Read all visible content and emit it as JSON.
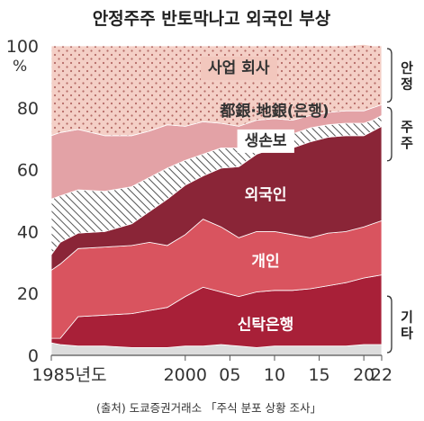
{
  "chart_data": {
    "type": "area",
    "stacked": true,
    "title": "안정주주 반토막나고 외국인 부상",
    "ylabel": "%",
    "ylim": [
      0,
      100
    ],
    "yticks": [
      0,
      20,
      40,
      60,
      80,
      100
    ],
    "xlim": [
      1985,
      2022
    ],
    "xticks": [
      {
        "value": 1985,
        "label": "1985년도"
      },
      {
        "value": 2000,
        "label": "2000"
      },
      {
        "value": 2005,
        "label": "05"
      },
      {
        "value": 2010,
        "label": "10"
      },
      {
        "value": 2015,
        "label": "15"
      },
      {
        "value": 2020,
        "label": "20"
      },
      {
        "value": 2022,
        "label": "22"
      }
    ],
    "x": [
      1985,
      1986,
      1988,
      1991,
      1994,
      1996,
      1998,
      2000,
      2002,
      2004,
      2006,
      2008,
      2010,
      2012,
      2014,
      2016,
      2018,
      2020,
      2021,
      2022
    ],
    "series": [
      {
        "name": "기타",
        "color": "#dcdcdc",
        "pattern": "none",
        "values": [
          4,
          3.5,
          3,
          3,
          2.5,
          2.5,
          2.5,
          3,
          3,
          3.5,
          3,
          2.5,
          3,
          3,
          3,
          3,
          3,
          3.5,
          3.5,
          3.5
        ]
      },
      {
        "name": "신탁은행",
        "color": "#a82038",
        "pattern": "none",
        "values": [
          1.5,
          2,
          9.5,
          10,
          11,
          12,
          13,
          16,
          19,
          17,
          16,
          18,
          18,
          18,
          18.5,
          19.5,
          20.5,
          21.5,
          22,
          22.5
        ]
      },
      {
        "name": "개인",
        "color": "#d9545f",
        "pattern": "none",
        "values": [
          22,
          24,
          22,
          22,
          22,
          22,
          20,
          20,
          22,
          21,
          19,
          19.5,
          19,
          18,
          16.5,
          17,
          16.5,
          16.5,
          17,
          17.5
        ]
      },
      {
        "name": "외국인",
        "color": "#8a2537",
        "pattern": "none",
        "values": [
          5,
          7,
          5,
          5,
          7,
          10,
          15,
          16,
          14,
          19,
          23,
          25,
          27,
          28,
          31,
          31,
          31,
          29.5,
          30,
          30.5
        ]
      },
      {
        "name": "생손보",
        "color": "#ffffff",
        "pattern": "hatch",
        "values": [
          18,
          15,
          14,
          13,
          12,
          11,
          10,
          8,
          7,
          6.5,
          6,
          5.5,
          5,
          4.5,
          4.5,
          4,
          4,
          4,
          3.5,
          3.5
        ]
      },
      {
        "name": "都銀·地銀(은행)",
        "color": "#e3a2a6",
        "pattern": "none",
        "values": [
          20.5,
          20.5,
          19.5,
          18,
          16.5,
          15,
          14,
          11,
          10.5,
          8,
          7,
          5.5,
          4.5,
          4.5,
          4,
          4,
          4,
          4,
          4,
          3.5
        ]
      },
      {
        "name": "사업 회사",
        "color": "#f4cfc6",
        "pattern": "dots",
        "values": [
          29,
          28,
          27,
          29,
          29,
          27.5,
          25.5,
          26,
          24.5,
          25,
          26,
          24,
          23.5,
          24,
          22.5,
          21.5,
          21,
          21.5,
          20,
          19
        ]
      }
    ],
    "area_labels": [
      {
        "series": "사업 회사",
        "text": "사업 회사",
        "x": 2006,
        "y": 93,
        "box": true
      },
      {
        "series": "都銀·地銀(은행)",
        "text": "都銀·地銀(은행)",
        "x": 2010,
        "y": 79,
        "box": false
      },
      {
        "series": "생손보",
        "text": "생손보",
        "x": 2009,
        "y": 69.5,
        "box": true
      },
      {
        "series": "외국인",
        "text": "외국인",
        "x": 2009,
        "y": 52,
        "box": false
      },
      {
        "series": "개인",
        "text": "개인",
        "x": 2009,
        "y": 30.5,
        "box": false
      },
      {
        "series": "신탁은행",
        "text": "신탁은행",
        "x": 2009,
        "y": 10,
        "box": false
      }
    ],
    "side_labels": [
      {
        "text": "안정",
        "range": [
          81,
          100
        ]
      },
      {
        "text": "주주",
        "range": [
          62,
          81
        ]
      },
      {
        "text": "기타",
        "range": [
          0,
          20
        ]
      }
    ],
    "source": "(출처) 도쿄증권거래소 「주식 분포 상황 조사」",
    "grid": false
  }
}
